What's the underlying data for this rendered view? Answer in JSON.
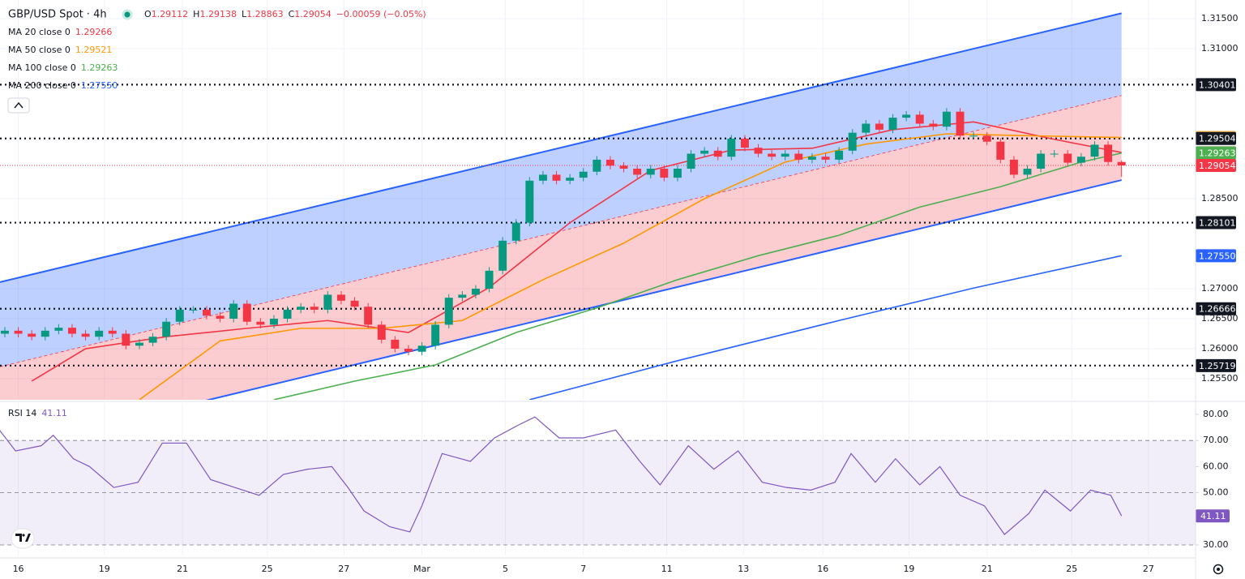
{
  "chart_data": [
    {
      "type": "candlestick",
      "title": "GBP/USD Spot · 4h",
      "ohlc_legend": [
        [
          "O",
          "1.29112"
        ],
        [
          "H",
          "1.29138"
        ],
        [
          "L",
          "1.28863"
        ],
        [
          "C",
          "1.29054"
        ]
      ],
      "change": "−0.00059 (−0.05%)",
      "up_color": "#089981",
      "down_color": "#f23645",
      "xlim": [
        -0.36,
        88.5
      ],
      "ylim": [
        1.25149,
        1.31811
      ],
      "xticks": [
        {
          "value": 1,
          "label": "16"
        },
        {
          "value": 7.4,
          "label": "19"
        },
        {
          "value": 13.2,
          "label": "21"
        },
        {
          "value": 19.5,
          "label": "25"
        },
        {
          "value": 25.2,
          "label": "27"
        },
        {
          "value": 31,
          "label": "Mar"
        },
        {
          "value": 37.2,
          "label": "5"
        },
        {
          "value": 43,
          "label": "7"
        },
        {
          "value": 49.2,
          "label": "11"
        },
        {
          "value": 54.9,
          "label": "13"
        },
        {
          "value": 60.8,
          "label": "16"
        },
        {
          "value": 67.2,
          "label": "19"
        },
        {
          "value": 73,
          "label": "21"
        },
        {
          "value": 79.3,
          "label": "25"
        },
        {
          "value": 85,
          "label": "27"
        }
      ],
      "yticks": [
        {
          "value": 1.315,
          "label": "1.31500"
        },
        {
          "value": 1.31,
          "label": "1.31000"
        },
        {
          "value": 1.285,
          "label": "1.28500"
        },
        {
          "value": 1.27,
          "label": "1.27000"
        },
        {
          "value": 1.265,
          "label": "1.26500"
        },
        {
          "value": 1.26,
          "label": "1.26000"
        },
        {
          "value": 1.255,
          "label": "1.25500"
        }
      ],
      "opens": [
        1.2625,
        1.263,
        1.2625,
        1.262,
        1.263,
        1.2635,
        1.2625,
        1.262,
        1.263,
        1.2625,
        1.2605,
        1.261,
        1.262,
        1.2645,
        1.2665,
        1.2665,
        1.2655,
        1.265,
        1.2675,
        1.2645,
        1.264,
        1.265,
        1.2665,
        1.267,
        1.2665,
        1.269,
        1.268,
        1.267,
        1.264,
        1.2615,
        1.26,
        1.2595,
        1.2605,
        1.264,
        1.2685,
        1.269,
        1.27,
        1.273,
        1.278,
        1.281,
        1.288,
        1.289,
        1.288,
        1.2885,
        1.2895,
        1.2915,
        1.2905,
        1.29,
        1.289,
        1.29,
        1.2885,
        1.29,
        1.2925,
        1.293,
        1.292,
        1.295,
        1.2935,
        1.2925,
        1.292,
        1.2925,
        1.2915,
        1.292,
        1.2915,
        1.293,
        1.296,
        1.2975,
        1.2965,
        1.2985,
        1.299,
        1.2975,
        1.297,
        1.2995,
        1.2955,
        1.2955,
        1.2945,
        1.2915,
        1.289,
        1.29,
        1.2925,
        1.2925,
        1.291,
        1.292,
        1.294,
        1.29112
      ],
      "highs": [
        1.2636,
        1.2636,
        1.2631,
        1.2636,
        1.2641,
        1.2641,
        1.2631,
        1.2636,
        1.2636,
        1.2631,
        1.2616,
        1.2626,
        1.2651,
        1.2671,
        1.2671,
        1.2671,
        1.2661,
        1.2681,
        1.2681,
        1.2651,
        1.2656,
        1.2671,
        1.2676,
        1.2676,
        1.2696,
        1.2696,
        1.2686,
        1.2676,
        1.2646,
        1.2621,
        1.2606,
        1.2611,
        1.2646,
        1.2691,
        1.2696,
        1.2706,
        1.2736,
        1.2786,
        1.2816,
        1.2886,
        1.2896,
        1.2896,
        1.2891,
        1.2901,
        1.2921,
        1.2921,
        1.2911,
        1.2906,
        1.2906,
        1.2906,
        1.2906,
        1.2931,
        1.2936,
        1.2936,
        1.2956,
        1.2956,
        1.2941,
        1.2931,
        1.2931,
        1.2931,
        1.2926,
        1.2926,
        1.2936,
        1.2966,
        1.2981,
        1.2981,
        1.2991,
        1.2996,
        1.2996,
        1.2981,
        1.3001,
        1.3001,
        1.2961,
        1.2961,
        1.2951,
        1.2921,
        1.2906,
        1.2931,
        1.2931,
        1.2931,
        1.2926,
        1.2946,
        1.2946,
        1.29138
      ],
      "lows": [
        1.2619,
        1.2619,
        1.2614,
        1.2614,
        1.2624,
        1.2619,
        1.2614,
        1.2614,
        1.2619,
        1.2599,
        1.2599,
        1.2604,
        1.2614,
        1.2639,
        1.2659,
        1.2649,
        1.2644,
        1.2644,
        1.2639,
        1.2634,
        1.2634,
        1.2644,
        1.2659,
        1.2659,
        1.2659,
        1.2674,
        1.2664,
        1.2634,
        1.2609,
        1.2594,
        1.2589,
        1.2589,
        1.2599,
        1.2634,
        1.2679,
        1.2684,
        1.2694,
        1.2724,
        1.2774,
        1.2804,
        1.2874,
        1.2874,
        1.2874,
        1.2879,
        1.2889,
        1.2899,
        1.2894,
        1.2884,
        1.2884,
        1.2879,
        1.2879,
        1.2894,
        1.2919,
        1.2914,
        1.2914,
        1.2929,
        1.2919,
        1.2914,
        1.2914,
        1.2909,
        1.2909,
        1.2909,
        1.2909,
        1.2924,
        1.2954,
        1.2959,
        1.2959,
        1.2979,
        1.2969,
        1.2964,
        1.2964,
        1.2949,
        1.2949,
        1.2939,
        1.2909,
        1.2884,
        1.2884,
        1.2894,
        1.2919,
        1.2904,
        1.2904,
        1.2914,
        1.2905,
        1.28863
      ],
      "closes": [
        1.263,
        1.2625,
        1.262,
        1.263,
        1.2635,
        1.2625,
        1.262,
        1.263,
        1.2625,
        1.2605,
        1.261,
        1.262,
        1.2645,
        1.2665,
        1.2665,
        1.2655,
        1.265,
        1.2675,
        1.2645,
        1.264,
        1.265,
        1.2665,
        1.267,
        1.2665,
        1.269,
        1.268,
        1.267,
        1.264,
        1.2615,
        1.26,
        1.2595,
        1.2605,
        1.264,
        1.2685,
        1.269,
        1.27,
        1.273,
        1.278,
        1.281,
        1.288,
        1.289,
        1.288,
        1.2885,
        1.2895,
        1.2915,
        1.2905,
        1.29,
        1.289,
        1.29,
        1.2885,
        1.29,
        1.2925,
        1.293,
        1.292,
        1.295,
        1.2935,
        1.2925,
        1.292,
        1.2925,
        1.2915,
        1.292,
        1.2915,
        1.293,
        1.296,
        1.2975,
        1.2965,
        1.2985,
        1.299,
        1.2975,
        1.297,
        1.2995,
        1.2955,
        1.2955,
        1.2945,
        1.2915,
        1.289,
        1.29,
        1.2925,
        1.2925,
        1.291,
        1.292,
        1.294,
        1.29112,
        1.29054
      ],
      "series": [
        {
          "name": "MA 20 close 0",
          "value_label": "1.29266",
          "color": "#f23645",
          "x": [
            2,
            6,
            12,
            18,
            24,
            30,
            36,
            42,
            48,
            54,
            60,
            66,
            72,
            78,
            83
          ],
          "values": [
            1.2546,
            1.26,
            1.262,
            1.2634,
            1.2647,
            1.2627,
            1.2702,
            1.281,
            1.2897,
            1.2931,
            1.2934,
            1.2965,
            1.2978,
            1.2949,
            1.2927
          ]
        },
        {
          "name": "MA 50 close 0",
          "value_label": "1.29521",
          "color": "#ff9800",
          "x": [
            10,
            16,
            22,
            28,
            34,
            40,
            46,
            52,
            58,
            64,
            70,
            76,
            83
          ],
          "values": [
            1.2515,
            1.2613,
            1.2634,
            1.2634,
            1.2647,
            1.2715,
            1.2776,
            1.285,
            1.2911,
            1.2941,
            1.2958,
            1.2955,
            1.2952
          ]
        },
        {
          "name": "MA 100 close 0",
          "value_label": "1.29263",
          "color": "#4caf50",
          "x": [
            20,
            26,
            32,
            38,
            44,
            50,
            56,
            62,
            68,
            74,
            80,
            83
          ],
          "values": [
            1.2515,
            1.2546,
            1.2573,
            1.2627,
            1.2668,
            1.2715,
            1.2755,
            1.2789,
            1.2836,
            1.287,
            1.2911,
            1.2926
          ]
        },
        {
          "name": "MA 200 close 0",
          "value_label": "1.27550",
          "color": "#2962ff",
          "x": [
            39,
            50,
            62,
            72,
            83
          ],
          "values": [
            1.2515,
            1.258,
            1.2647,
            1.2701,
            1.2755
          ]
        }
      ],
      "channel": {
        "x": [
          -0.36,
          83
        ],
        "upper": [
          1.2711,
          1.3159
        ],
        "middle": [
          1.257,
          1.3022
        ],
        "lower": [
          1.2431,
          1.2881
        ],
        "line_color": "#2962ff"
      },
      "levels": [
        1.30401,
        1.29504,
        1.28101,
        1.26666,
        1.25719
      ],
      "last_price": 1.29054,
      "badges": [
        {
          "value": 1.30401,
          "label": "1.30401",
          "color": "#131722",
          "text_color": "#ffffff"
        },
        {
          "value": 1.29521,
          "label": "1.29521",
          "color": "#ffb74d",
          "text_color": "#131722"
        },
        {
          "value": 1.29504,
          "label": "1.29504",
          "color": "#131722",
          "text_color": "#ffffff"
        },
        {
          "value": 1.29266,
          "label": "1.29266",
          "color": "#f23645",
          "text_color": "#ffffff"
        },
        {
          "value": 1.29263,
          "label": "1.29263",
          "color": "#4caf50",
          "text_color": "#ffffff"
        },
        {
          "value": 1.29054,
          "label": "1.29054",
          "color": "#f23645",
          "text_color": "#ffffff"
        },
        {
          "value": 1.28101,
          "label": "1.28101",
          "color": "#131722",
          "text_color": "#ffffff"
        },
        {
          "value": 1.2755,
          "label": "1.27550",
          "color": "#2962ff",
          "text_color": "#ffffff"
        },
        {
          "value": 1.26666,
          "label": "1.26666",
          "color": "#131722",
          "text_color": "#ffffff"
        },
        {
          "value": 1.25719,
          "label": "1.25719",
          "color": "#131722",
          "text_color": "#ffffff"
        }
      ]
    },
    {
      "type": "line",
      "series": [
        {
          "name": "RSI 14",
          "value_label": "41.11",
          "color": "#7e57c2",
          "x": [
            -0.4,
            0.8,
            2.7,
            3.6,
            5.1,
            6.3,
            8.1,
            9.9,
            11.7,
            13.5,
            15.3,
            17.1,
            18.9,
            20.7,
            22.5,
            24.3,
            25.5,
            26.7,
            28.6,
            30.1,
            31,
            32.5,
            34.6,
            36.4,
            38.2,
            39.4,
            41.2,
            43,
            45.4,
            47.2,
            48.7,
            50.8,
            52.7,
            54.5,
            56.3,
            58.1,
            59.9,
            61.7,
            62.9,
            64.7,
            66.2,
            68,
            69.5,
            71,
            72.8,
            74.3,
            76.1,
            77.3,
            79.2,
            80.7,
            82.2,
            83
          ],
          "values": [
            74,
            66,
            68,
            72,
            63,
            60,
            52,
            54,
            69,
            69,
            55,
            52,
            49,
            57,
            59,
            60,
            52,
            43,
            37,
            35,
            45,
            65,
            62,
            71,
            76,
            79,
            71,
            71,
            74,
            62,
            53,
            68,
            59,
            66,
            54,
            52,
            51,
            54,
            65,
            54,
            63,
            53,
            60,
            49,
            45,
            34,
            42,
            51,
            43,
            51,
            49,
            41.11
          ]
        }
      ],
      "xlim": [
        -0.36,
        88.5
      ],
      "ylim": [
        25.96,
        84.35
      ],
      "yticks": [
        {
          "value": 80,
          "label": "80.00"
        },
        {
          "value": 70,
          "label": "70.00"
        },
        {
          "value": 60,
          "label": "60.00"
        },
        {
          "value": 50,
          "label": "50.00"
        },
        {
          "value": 30,
          "label": "30.00"
        }
      ],
      "levels": [
        70,
        50,
        30
      ]
    }
  ]
}
